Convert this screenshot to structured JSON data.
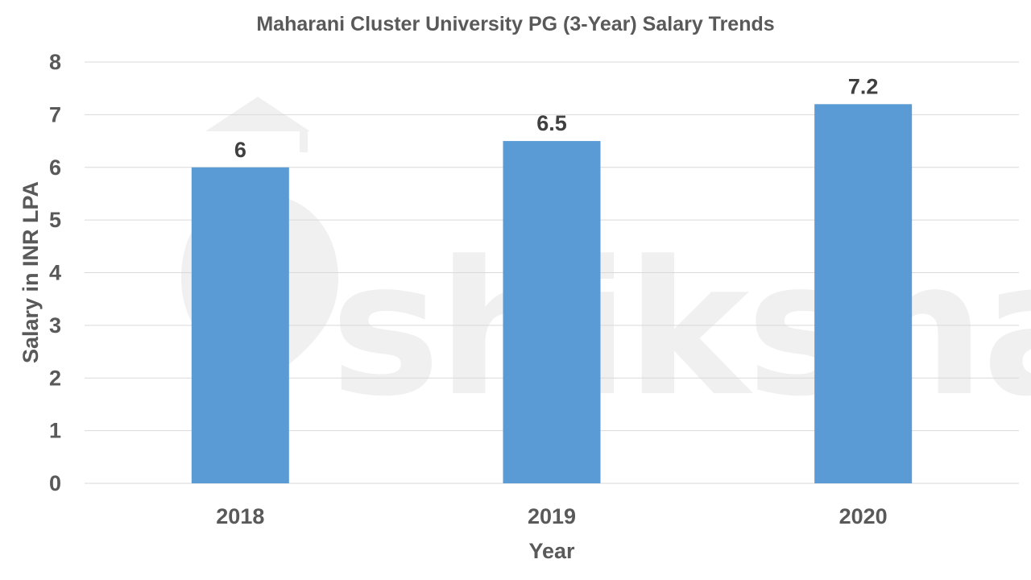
{
  "watermark": {
    "text": "shiksha"
  },
  "chart_data": {
    "type": "bar",
    "title": "Maharani Cluster University PG (3-Year) Salary Trends",
    "xlabel": "Year",
    "ylabel": "Salary in INR LPA",
    "categories": [
      "2018",
      "2019",
      "2020"
    ],
    "values": [
      6,
      6.5,
      7.2
    ],
    "data_labels": [
      "6",
      "6.5",
      "7.2"
    ],
    "ylim": [
      0,
      8
    ],
    "yticks": [
      "0",
      "1",
      "2",
      "3",
      "4",
      "5",
      "6",
      "7",
      "8"
    ],
    "grid": true,
    "legend": "none",
    "bar_color": "#5b9bd5"
  }
}
